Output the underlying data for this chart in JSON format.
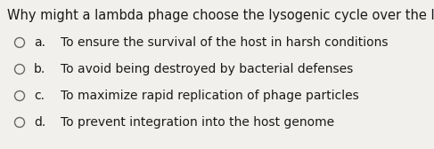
{
  "question": "Why might a lambda phage choose the lysogenic cycle over the lytic cycle?",
  "options": [
    {
      "label": "a.",
      "text": "To ensure the survival of the host in harsh conditions"
    },
    {
      "label": "b.",
      "text": "To avoid being destroyed by bacterial defenses"
    },
    {
      "label": "c.",
      "text": "To maximize rapid replication of phage particles"
    },
    {
      "label": "d.",
      "text": "To prevent integration into the host genome"
    }
  ],
  "bg_color": "#f2f0ed",
  "text_color": "#1a1a1a",
  "question_fontsize": 10.5,
  "option_fontsize": 10.0,
  "circle_color": "#666666"
}
